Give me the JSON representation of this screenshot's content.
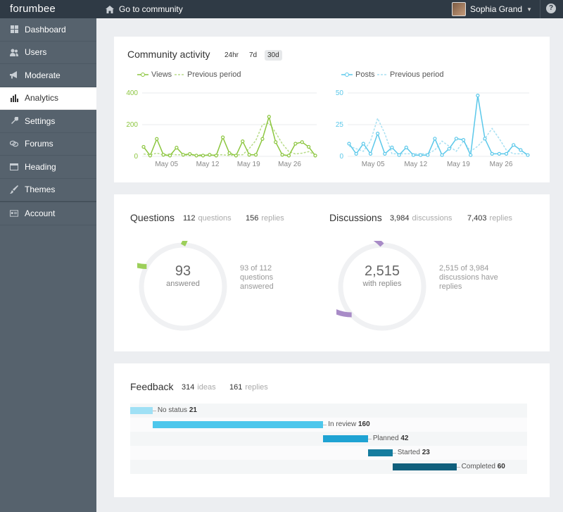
{
  "topbar": {
    "logo": "forumbee",
    "goto_label": "Go to community",
    "user_name": "Sophia Grand",
    "help": "?"
  },
  "sidebar": {
    "items": [
      {
        "label": "Dashboard",
        "icon": "grid-icon"
      },
      {
        "label": "Users",
        "icon": "users-icon"
      },
      {
        "label": "Moderate",
        "icon": "megaphone-icon"
      },
      {
        "label": "Analytics",
        "icon": "bar-chart-icon",
        "active": true
      },
      {
        "label": "Settings",
        "icon": "wrench-icon"
      },
      {
        "label": "Forums",
        "icon": "forums-icon"
      },
      {
        "label": "Heading",
        "icon": "heading-icon"
      },
      {
        "label": "Themes",
        "icon": "brush-icon"
      },
      {
        "label": "Account",
        "icon": "account-icon"
      }
    ]
  },
  "activity": {
    "title": "Community activity",
    "ranges": [
      "24hr",
      "7d",
      "30d"
    ],
    "selected_range": "30d",
    "views_legend": "Views",
    "views_prev_legend": "Previous period",
    "posts_legend": "Posts",
    "posts_prev_legend": "Previous period"
  },
  "chart_data": [
    {
      "type": "line",
      "x_ticks": [
        "May 05",
        "May 12",
        "May 19",
        "May 26"
      ],
      "y_ticks": [
        "0",
        "200",
        "400"
      ],
      "ylim": [
        0,
        400
      ],
      "series": [
        {
          "name": "Views",
          "color": "#8cc63f",
          "values": [
            60,
            5,
            110,
            10,
            5,
            55,
            10,
            15,
            5,
            5,
            10,
            5,
            120,
            20,
            5,
            95,
            10,
            10,
            110,
            250,
            90,
            10,
            5,
            80,
            90,
            60,
            5
          ]
        },
        {
          "name": "Previous period",
          "color": "#b8dc8a",
          "dashed": true,
          "values": [
            15,
            10,
            20,
            10,
            15,
            10,
            10,
            5,
            10,
            10,
            5,
            10,
            10,
            5,
            10,
            10,
            50,
            100,
            200,
            210,
            150,
            80,
            30,
            15,
            20,
            30,
            10
          ]
        }
      ]
    },
    {
      "type": "line",
      "x_ticks": [
        "May 05",
        "May 12",
        "May 19",
        "May 26"
      ],
      "y_ticks": [
        "0",
        "25",
        "50"
      ],
      "ylim": [
        0,
        50
      ],
      "series": [
        {
          "name": "Posts",
          "color": "#5bc8ea",
          "values": [
            10,
            2,
            10,
            2,
            18,
            2,
            7,
            1,
            7,
            1,
            1,
            1,
            14,
            1,
            6,
            14,
            13,
            1,
            48,
            14,
            2,
            2,
            2,
            9,
            5,
            1
          ]
        },
        {
          "name": "Previous period",
          "color": "#a8e0f2",
          "dashed": true,
          "values": [
            8,
            6,
            4,
            12,
            30,
            18,
            2,
            2,
            2,
            2,
            2,
            2,
            5,
            12,
            8,
            4,
            12,
            4,
            8,
            14,
            22,
            14,
            5,
            2,
            2,
            2
          ]
        }
      ]
    },
    {
      "type": "bar",
      "categories": [
        "No status",
        "In review",
        "Planned",
        "Started",
        "Completed"
      ],
      "values": [
        21,
        160,
        42,
        23,
        60
      ]
    }
  ],
  "questions": {
    "title": "Questions",
    "count": "112",
    "count_label": "questions",
    "replies": "156",
    "replies_label": "replies",
    "answered_value": 93,
    "total": 112,
    "big": "93",
    "small": "answered",
    "desc": "93 of 112 questions answered",
    "color": "#9ccf5a"
  },
  "discussions": {
    "title": "Discussions",
    "count": "3,984",
    "count_label": "discussions",
    "replies": "7,403",
    "replies_label": "replies",
    "with_replies_value": 2515,
    "total": 3984,
    "big": "2,515",
    "small": "with replies",
    "desc": "2,515 of 3,984 discussions have replies",
    "color": "#a88bc7"
  },
  "feedback": {
    "title": "Feedback",
    "ideas": "314",
    "ideas_label": "ideas",
    "replies": "161",
    "replies_label": "replies",
    "items": [
      {
        "label": "No status",
        "count": "21",
        "color": "#9fe0f5"
      },
      {
        "label": "In review",
        "count": "160",
        "color": "#4ec7ec"
      },
      {
        "label": "Planned",
        "count": "42",
        "color": "#1fa3d3"
      },
      {
        "label": "Started",
        "count": "23",
        "color": "#157c9e"
      },
      {
        "label": "Completed",
        "count": "60",
        "color": "#0f5f7c"
      }
    ]
  }
}
